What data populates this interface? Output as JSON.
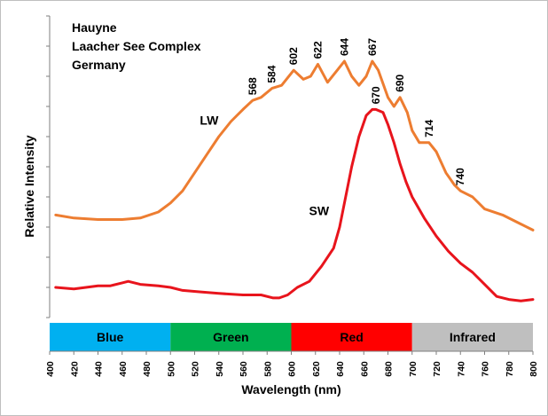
{
  "chart_data": {
    "type": "line",
    "xlabel": "Wavelength (nm)",
    "ylabel": "Relative Intensity",
    "xlim": [
      400,
      800
    ],
    "ylim": [
      0,
      100
    ],
    "x_ticks": [
      400,
      420,
      440,
      460,
      480,
      500,
      520,
      540,
      560,
      580,
      600,
      620,
      640,
      660,
      680,
      700,
      720,
      740,
      760,
      780,
      800
    ],
    "y_tick_labels_shown": false,
    "grid": false,
    "legend": "none",
    "sample_text": [
      "Hauyne",
      "Laacher See Complex",
      "Germany"
    ],
    "series": [
      {
        "name": "LW",
        "color": "#ed7d31",
        "points": [
          [
            405,
            34
          ],
          [
            420,
            33
          ],
          [
            440,
            32.5
          ],
          [
            460,
            32.5
          ],
          [
            475,
            33
          ],
          [
            490,
            35
          ],
          [
            500,
            38
          ],
          [
            510,
            42
          ],
          [
            520,
            48
          ],
          [
            530,
            54
          ],
          [
            540,
            60
          ],
          [
            550,
            65
          ],
          [
            560,
            69
          ],
          [
            568,
            72
          ],
          [
            575,
            73
          ],
          [
            584,
            76
          ],
          [
            592,
            77
          ],
          [
            602,
            82
          ],
          [
            610,
            79
          ],
          [
            616,
            80
          ],
          [
            622,
            84
          ],
          [
            630,
            78
          ],
          [
            636,
            81
          ],
          [
            644,
            85
          ],
          [
            650,
            80
          ],
          [
            656,
            77
          ],
          [
            662,
            80
          ],
          [
            667,
            85
          ],
          [
            672,
            82
          ],
          [
            680,
            73
          ],
          [
            685,
            70
          ],
          [
            690,
            73
          ],
          [
            696,
            68
          ],
          [
            700,
            62
          ],
          [
            706,
            58
          ],
          [
            714,
            58
          ],
          [
            720,
            55
          ],
          [
            728,
            48
          ],
          [
            735,
            44
          ],
          [
            740,
            42
          ],
          [
            750,
            40
          ],
          [
            760,
            36
          ],
          [
            775,
            34
          ],
          [
            790,
            31
          ],
          [
            800,
            29
          ]
        ]
      },
      {
        "name": "SW",
        "color": "#e8141c",
        "points": [
          [
            405,
            10
          ],
          [
            420,
            9.5
          ],
          [
            440,
            10.5
          ],
          [
            450,
            10.5
          ],
          [
            460,
            11.5
          ],
          [
            465,
            12
          ],
          [
            475,
            11
          ],
          [
            490,
            10.5
          ],
          [
            500,
            10
          ],
          [
            510,
            9
          ],
          [
            525,
            8.5
          ],
          [
            540,
            8
          ],
          [
            560,
            7.5
          ],
          [
            575,
            7.5
          ],
          [
            585,
            6.5
          ],
          [
            590,
            6.5
          ],
          [
            597,
            7.5
          ],
          [
            605,
            10
          ],
          [
            615,
            12
          ],
          [
            625,
            17
          ],
          [
            635,
            23
          ],
          [
            640,
            30
          ],
          [
            645,
            40
          ],
          [
            650,
            50
          ],
          [
            656,
            60
          ],
          [
            662,
            67
          ],
          [
            667,
            69
          ],
          [
            670,
            69
          ],
          [
            676,
            68
          ],
          [
            680,
            64
          ],
          [
            685,
            58
          ],
          [
            690,
            51
          ],
          [
            695,
            45
          ],
          [
            700,
            40
          ],
          [
            710,
            33
          ],
          [
            720,
            27
          ],
          [
            730,
            22
          ],
          [
            740,
            18
          ],
          [
            750,
            15
          ],
          [
            760,
            11
          ],
          [
            770,
            7
          ],
          [
            780,
            6
          ],
          [
            790,
            5.5
          ],
          [
            800,
            6
          ]
        ]
      }
    ],
    "peak_labels": [
      {
        "text": "568",
        "x": 568,
        "y": 72
      },
      {
        "text": "584",
        "x": 584,
        "y": 76
      },
      {
        "text": "602",
        "x": 602,
        "y": 82
      },
      {
        "text": "622",
        "x": 622,
        "y": 84
      },
      {
        "text": "644",
        "x": 644,
        "y": 85
      },
      {
        "text": "667",
        "x": 667,
        "y": 85
      },
      {
        "text": "690",
        "x": 690,
        "y": 73
      },
      {
        "text": "714",
        "x": 714,
        "y": 58
      },
      {
        "text": "740",
        "x": 740,
        "y": 42
      },
      {
        "text": "670",
        "x": 670,
        "y": 69
      }
    ],
    "series_labels": [
      {
        "text": "LW",
        "x": 532,
        "y": 64
      },
      {
        "text": "SW",
        "x": 623,
        "y": 34
      }
    ],
    "bands": [
      {
        "label": "Blue",
        "from": 400,
        "to": 500,
        "color": "#00b0f0",
        "text_color": "#000000"
      },
      {
        "label": "Green",
        "from": 500,
        "to": 600,
        "color": "#00b050",
        "text_color": "#000000"
      },
      {
        "label": "Red",
        "from": 600,
        "to": 700,
        "color": "#ff0000",
        "text_color": "#000000"
      },
      {
        "label": "Infrared",
        "from": 700,
        "to": 800,
        "color": "#bfbfbf",
        "text_color": "#000000"
      }
    ]
  }
}
